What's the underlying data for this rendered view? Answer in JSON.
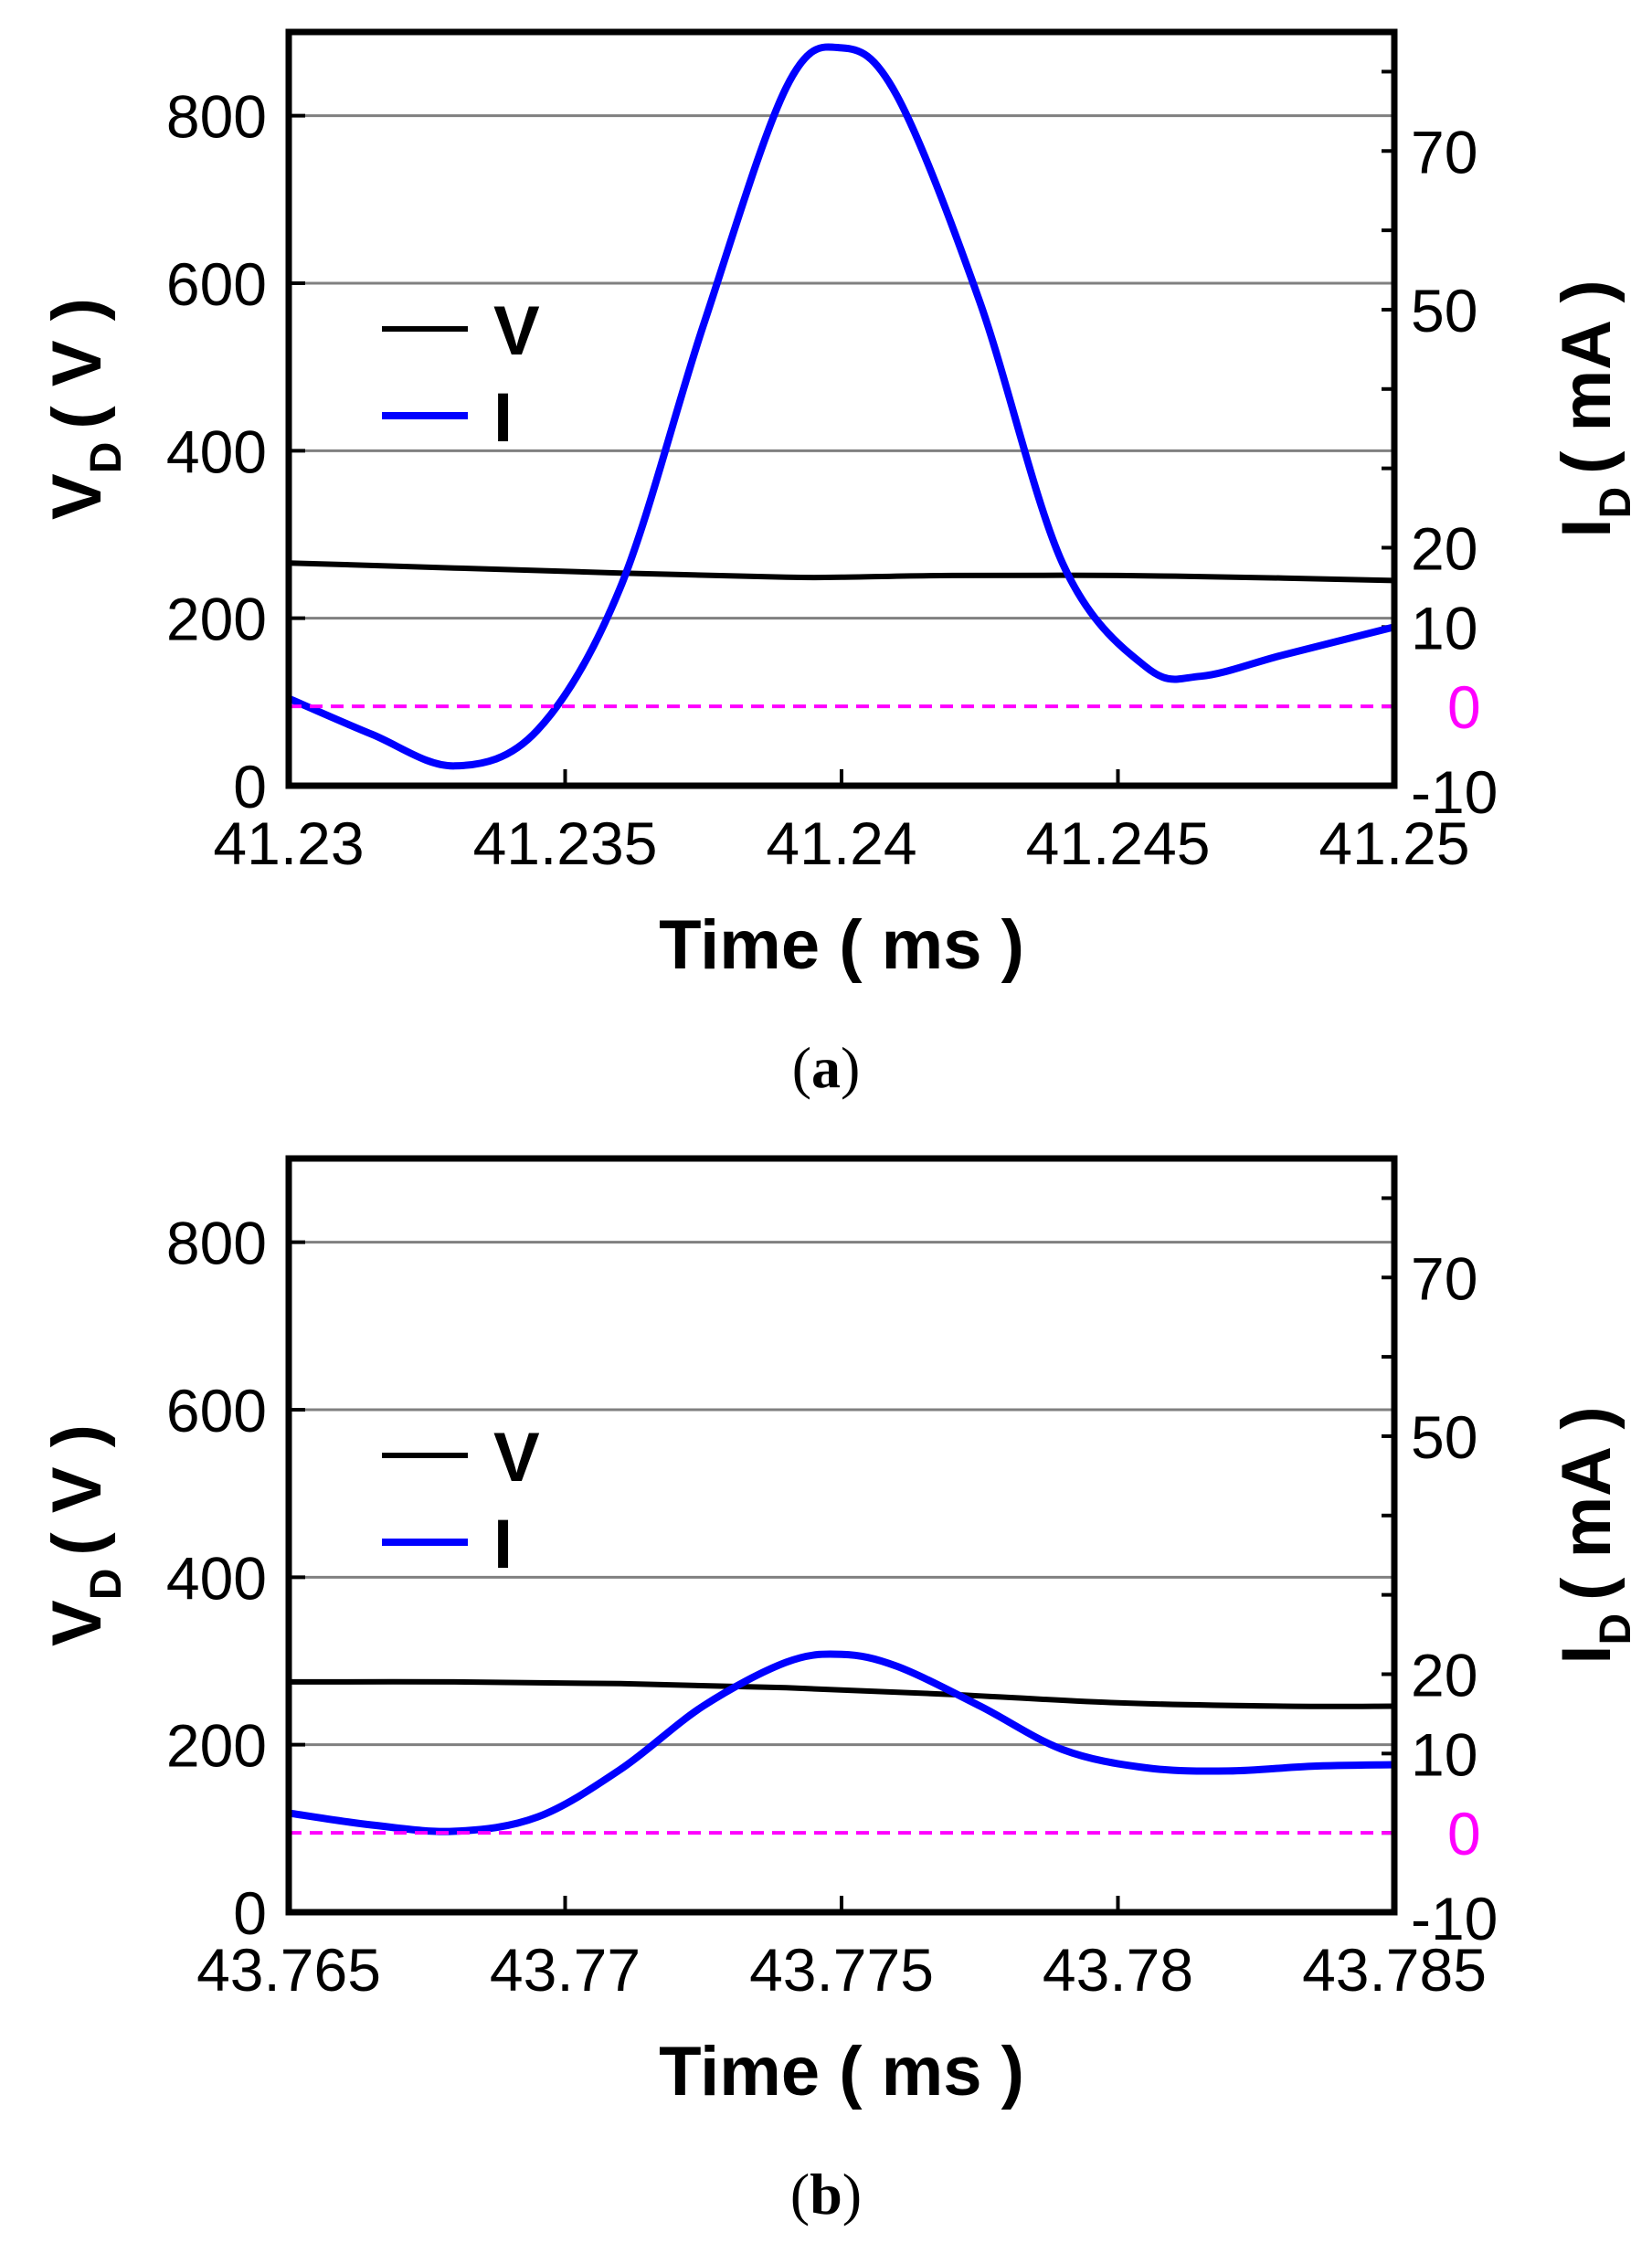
{
  "colors": {
    "voltage": "#000000",
    "current": "#0000ff",
    "zero_line": "#ff00ff",
    "grid": "#808080"
  },
  "chart_data": [
    {
      "type": "line",
      "panel": "a",
      "caption": "(a)",
      "xlabel": "Time ( ms )",
      "ylabel_main": "V",
      "ylabel_sub": "D",
      "ylabel_unit": "( V )",
      "y2label_main": "I",
      "y2label_sub": "D",
      "y2label_unit": "( mA )",
      "xlim": [
        41.23,
        41.25
      ],
      "ylim": [
        0,
        900
      ],
      "y2lim": [
        -10,
        85
      ],
      "xticks": [
        41.23,
        41.235,
        41.24,
        41.245,
        41.25
      ],
      "xtick_labels": [
        "41.23",
        "41.235",
        "41.24",
        "41.245",
        "41.25"
      ],
      "yticks": [
        0,
        200,
        400,
        600,
        800
      ],
      "ytick_labels": [
        "0",
        "200",
        "400",
        "600",
        "800"
      ],
      "y2ticks": [
        -10,
        10,
        20,
        50,
        70
      ],
      "y2tick_labels": [
        "-10",
        "10",
        "20",
        "50",
        "70"
      ],
      "y2_zero_label": "0",
      "legend": [
        {
          "name": "V",
          "color": "#000000"
        },
        {
          "name": "I",
          "color": "#0000ff"
        }
      ],
      "legend_position": "upper-left",
      "series": [
        {
          "name": "V",
          "axis": "left",
          "x": [
            41.23,
            41.233,
            41.236,
            41.239,
            41.24,
            41.242,
            41.245,
            41.248,
            41.25
          ],
          "y": [
            266,
            260,
            254,
            249,
            249,
            251,
            251,
            248,
            245
          ]
        },
        {
          "name": "I",
          "axis": "right",
          "x": [
            41.23,
            41.2315,
            41.233,
            41.2345,
            41.236,
            41.2375,
            41.239,
            41.24,
            41.241,
            41.2425,
            41.244,
            41.2455,
            41.2465,
            41.248,
            41.25
          ],
          "y": [
            1.0,
            -3.5,
            -7.5,
            -3.0,
            15.0,
            48.0,
            78.0,
            83.0,
            77.0,
            51.0,
            18.0,
            5.0,
            3.8,
            6.5,
            10.0
          ]
        },
        {
          "name": "zero",
          "axis": "right",
          "style": "dashed",
          "x": [
            41.23,
            41.25
          ],
          "y": [
            0,
            0
          ]
        }
      ]
    },
    {
      "type": "line",
      "panel": "b",
      "caption": "(b)",
      "xlabel": "Time ( ms )",
      "ylabel_main": "V",
      "ylabel_sub": "D",
      "ylabel_unit": "( V )",
      "y2label_main": "I",
      "y2label_sub": "D",
      "y2label_unit": "( mA )",
      "xlim": [
        43.765,
        43.785
      ],
      "ylim": [
        0,
        900
      ],
      "y2lim": [
        -10,
        85
      ],
      "xticks": [
        43.765,
        43.77,
        43.775,
        43.78,
        43.785
      ],
      "xtick_labels": [
        "43.765",
        "43.77",
        "43.775",
        "43.78",
        "43.785"
      ],
      "yticks": [
        0,
        200,
        400,
        600,
        800
      ],
      "ytick_labels": [
        "0",
        "200",
        "400",
        "600",
        "800"
      ],
      "y2ticks": [
        -10,
        10,
        20,
        50,
        70
      ],
      "y2tick_labels": [
        "-10",
        "10",
        "20",
        "50",
        "70"
      ],
      "y2_zero_label": "0",
      "legend": [
        {
          "name": "V",
          "color": "#000000"
        },
        {
          "name": "I",
          "color": "#0000ff"
        }
      ],
      "legend_position": "upper-left",
      "series": [
        {
          "name": "V",
          "axis": "left",
          "x": [
            43.765,
            43.768,
            43.771,
            43.774,
            43.777,
            43.78,
            43.783,
            43.785
          ],
          "y": [
            275,
            275,
            273,
            268,
            260,
            250,
            246,
            246
          ]
        },
        {
          "name": "I",
          "axis": "right",
          "x": [
            43.765,
            43.7665,
            43.768,
            43.7695,
            43.771,
            43.7725,
            43.774,
            43.775,
            43.776,
            43.7775,
            43.779,
            43.7805,
            43.782,
            43.7835,
            43.785
          ],
          "y": [
            2.5,
            1.0,
            0.2,
            2.0,
            8.0,
            16.0,
            21.5,
            22.5,
            21.0,
            16.0,
            10.5,
            8.2,
            7.8,
            8.4,
            8.6
          ]
        },
        {
          "name": "zero",
          "axis": "right",
          "style": "dashed",
          "x": [
            43.765,
            43.785
          ],
          "y": [
            0,
            0
          ]
        }
      ]
    }
  ]
}
